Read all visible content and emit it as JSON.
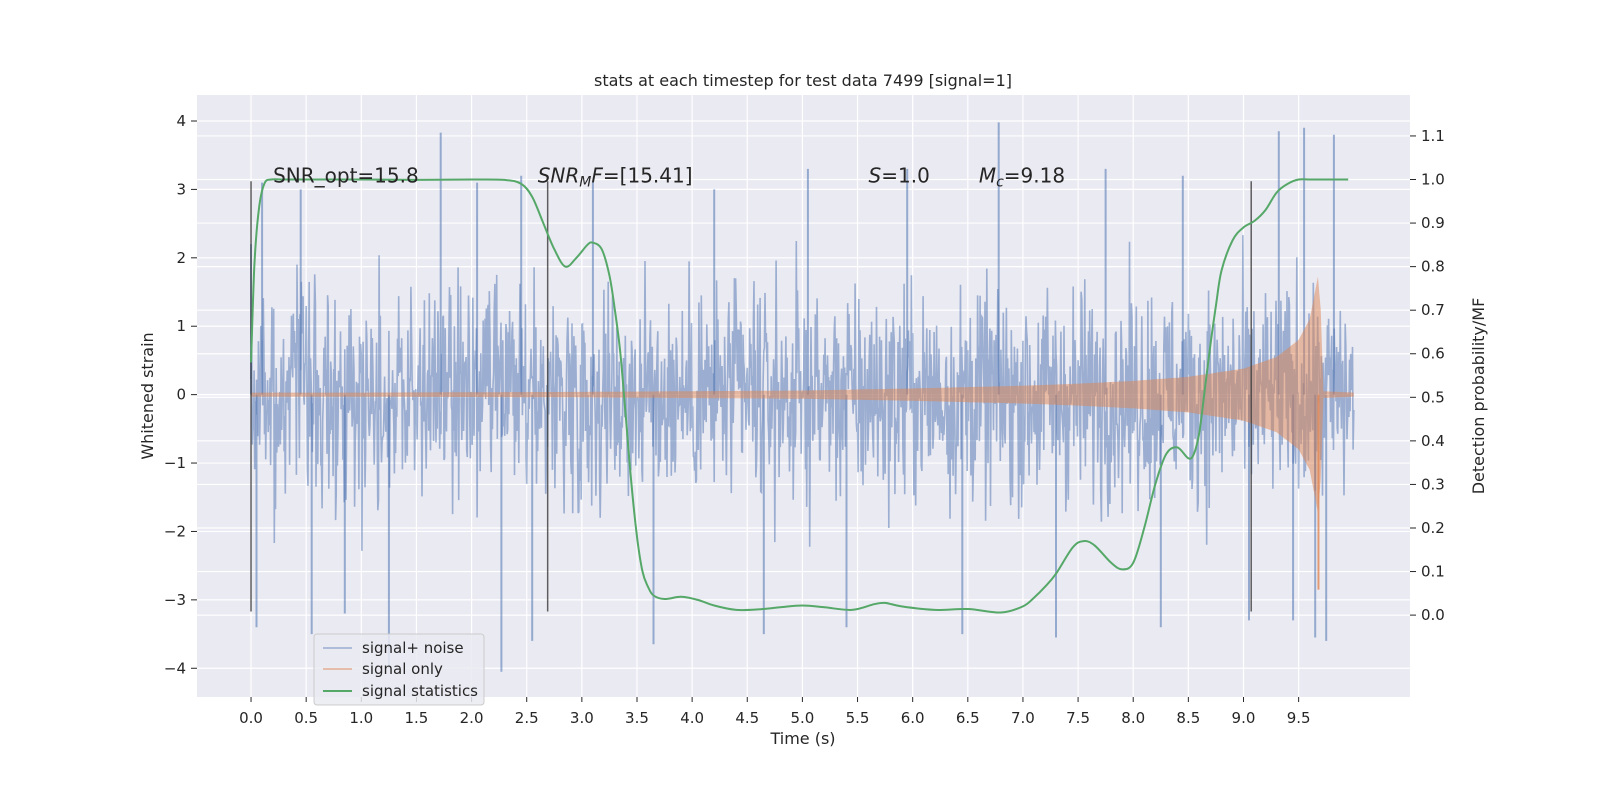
{
  "chart_data": {
    "type": "line",
    "title": "stats at each timestep for test data 7499 [signal=1]",
    "xlabel": "Time (s)",
    "ylabel": "Whitened strain",
    "y2label": "Detection probability/MF",
    "xlim": [
      -0.49,
      10.51
    ],
    "ylim": [
      -4.42,
      4.38
    ],
    "y2lim": [
      -0.188,
      1.194
    ],
    "x_ticks": [
      "0.0",
      "0.5",
      "1.0",
      "1.5",
      "2.0",
      "2.5",
      "3.0",
      "3.5",
      "4.0",
      "4.5",
      "5.0",
      "5.5",
      "6.0",
      "6.5",
      "7.0",
      "7.5",
      "8.0",
      "8.5",
      "9.0",
      "9.5"
    ],
    "y_ticks": [
      "4",
      "3",
      "2",
      "1",
      "0",
      "−1",
      "−2",
      "−3",
      "−4"
    ],
    "y2_ticks": [
      "1.1",
      "1.0",
      "0.9",
      "0.8",
      "0.7",
      "0.6",
      "0.5",
      "0.4",
      "0.3",
      "0.2",
      "0.1",
      "0.0"
    ],
    "grid": true,
    "legend_position": "lower-left",
    "annotations": [
      {
        "id": "snr-opt",
        "text": "SNR_opt=15.8",
        "x": 0.2,
        "y": 3.1
      },
      {
        "id": "snr-mf",
        "parts": [
          {
            "t": "SNR",
            "style": "italic"
          },
          {
            "t": "M",
            "style": "italic-sub"
          },
          {
            "t": "F",
            "style": "italic"
          },
          {
            "t": "=[15.41]",
            "style": "normal"
          }
        ],
        "x": 2.6,
        "y": 3.1
      },
      {
        "id": "s-stat",
        "parts": [
          {
            "t": "S",
            "style": "italic"
          },
          {
            "t": "=1.0",
            "style": "normal"
          }
        ],
        "x": 5.6,
        "y": 3.1
      },
      {
        "id": "chirp-mass",
        "parts": [
          {
            "t": "M",
            "style": "italic"
          },
          {
            "t": "c",
            "style": "italic-sub"
          },
          {
            "t": "=9.18",
            "style": "normal"
          }
        ],
        "x": 6.6,
        "y": 3.1
      }
    ],
    "vertical_markers": [
      {
        "x": 0.0,
        "y_range": [
          -3.17,
          3.12
        ]
      },
      {
        "x": 2.69,
        "y_range": [
          -3.17,
          3.12
        ]
      },
      {
        "x": 9.07,
        "y_range": [
          -3.17,
          3.12
        ]
      }
    ],
    "series": [
      {
        "name": "signal+ noise",
        "color": "#4c72b0",
        "description": "whitened noisy strain, dense oscillation over 0.0-10.0 s",
        "t_range": [
          0.0,
          10.0
        ],
        "bulk_amplitude": [
          -2.0,
          2.0
        ],
        "spikes": [
          {
            "x": 0.0,
            "y": 2.2
          },
          {
            "x": 0.05,
            "y": -3.4
          },
          {
            "x": 0.1,
            "y": 3.1
          },
          {
            "x": 0.45,
            "y": 3.0
          },
          {
            "x": 0.55,
            "y": -3.5
          },
          {
            "x": 0.85,
            "y": -3.2
          },
          {
            "x": 1.25,
            "y": -4.0
          },
          {
            "x": 1.72,
            "y": 3.83
          },
          {
            "x": 2.05,
            "y": 3.1
          },
          {
            "x": 2.27,
            "y": -4.05
          },
          {
            "x": 2.45,
            "y": 3.2
          },
          {
            "x": 2.55,
            "y": -3.6
          },
          {
            "x": 3.1,
            "y": 3.1
          },
          {
            "x": 3.65,
            "y": -3.65
          },
          {
            "x": 4.2,
            "y": 3.0
          },
          {
            "x": 4.65,
            "y": -3.5
          },
          {
            "x": 5.05,
            "y": 3.3
          },
          {
            "x": 5.4,
            "y": -3.4
          },
          {
            "x": 5.95,
            "y": 3.3
          },
          {
            "x": 6.45,
            "y": -3.5
          },
          {
            "x": 6.78,
            "y": 3.98
          },
          {
            "x": 7.3,
            "y": -3.55
          },
          {
            "x": 7.75,
            "y": 3.3
          },
          {
            "x": 8.25,
            "y": -3.4
          },
          {
            "x": 8.45,
            "y": 3.2
          },
          {
            "x": 9.05,
            "y": -3.3
          },
          {
            "x": 9.32,
            "y": 3.85
          },
          {
            "x": 9.45,
            "y": -3.3
          },
          {
            "x": 9.55,
            "y": 3.9
          },
          {
            "x": 9.65,
            "y": -3.55
          },
          {
            "x": 9.75,
            "y": -3.6
          },
          {
            "x": 9.82,
            "y": 3.8
          }
        ]
      },
      {
        "name": "signal only",
        "color": "#dd8452",
        "description": "chirp waveform envelope growing until merger near 9.68 s",
        "envelope": {
          "x": [
            0.0,
            1.0,
            2.0,
            3.0,
            4.0,
            5.0,
            6.0,
            7.0,
            7.5,
            8.0,
            8.5,
            9.0,
            9.3,
            9.5,
            9.6,
            9.66,
            9.69,
            9.72,
            10.0
          ],
          "amp": [
            0.03,
            0.03,
            0.035,
            0.04,
            0.05,
            0.06,
            0.09,
            0.13,
            0.16,
            0.2,
            0.26,
            0.38,
            0.55,
            0.8,
            1.1,
            1.6,
            1.85,
            0.05,
            0.03
          ]
        },
        "merger_min": {
          "x": 9.68,
          "y": -2.85
        }
      },
      {
        "name": "signal statistics",
        "color": "#55a868",
        "axis": "right",
        "x": [
          0.0,
          0.03,
          0.07,
          0.12,
          0.18,
          0.3,
          0.5,
          1.0,
          1.5,
          2.0,
          2.3,
          2.45,
          2.55,
          2.65,
          2.75,
          2.85,
          2.95,
          3.05,
          3.1,
          3.18,
          3.25,
          3.3,
          3.35,
          3.4,
          3.45,
          3.5,
          3.55,
          3.6,
          3.65,
          3.75,
          3.9,
          4.05,
          4.2,
          4.4,
          4.6,
          4.8,
          5.0,
          5.2,
          5.45,
          5.65,
          5.75,
          5.9,
          6.2,
          6.5,
          6.8,
          7.0,
          7.1,
          7.2,
          7.3,
          7.45,
          7.55,
          7.65,
          7.8,
          7.9,
          8.0,
          8.1,
          8.2,
          8.3,
          8.4,
          8.5,
          8.55,
          8.6,
          8.65,
          8.7,
          8.75,
          8.8,
          8.9,
          9.0,
          9.1,
          9.2,
          9.3,
          9.4,
          9.5,
          9.6,
          9.7,
          9.8,
          9.95
        ],
        "y": [
          0.58,
          0.8,
          0.93,
          0.99,
          1.0,
          1.0,
          1.0,
          1.0,
          0.999,
          1.0,
          0.999,
          0.99,
          0.96,
          0.9,
          0.84,
          0.8,
          0.82,
          0.85,
          0.855,
          0.84,
          0.78,
          0.7,
          0.6,
          0.45,
          0.3,
          0.18,
          0.1,
          0.065,
          0.045,
          0.037,
          0.042,
          0.035,
          0.022,
          0.012,
          0.013,
          0.018,
          0.022,
          0.018,
          0.012,
          0.025,
          0.028,
          0.02,
          0.012,
          0.014,
          0.006,
          0.02,
          0.04,
          0.065,
          0.095,
          0.155,
          0.17,
          0.16,
          0.12,
          0.105,
          0.12,
          0.2,
          0.3,
          0.37,
          0.385,
          0.36,
          0.37,
          0.42,
          0.52,
          0.62,
          0.71,
          0.79,
          0.86,
          0.89,
          0.905,
          0.93,
          0.97,
          0.99,
          1.0,
          1.0,
          1.0,
          1.0,
          1.0
        ]
      }
    ]
  }
}
